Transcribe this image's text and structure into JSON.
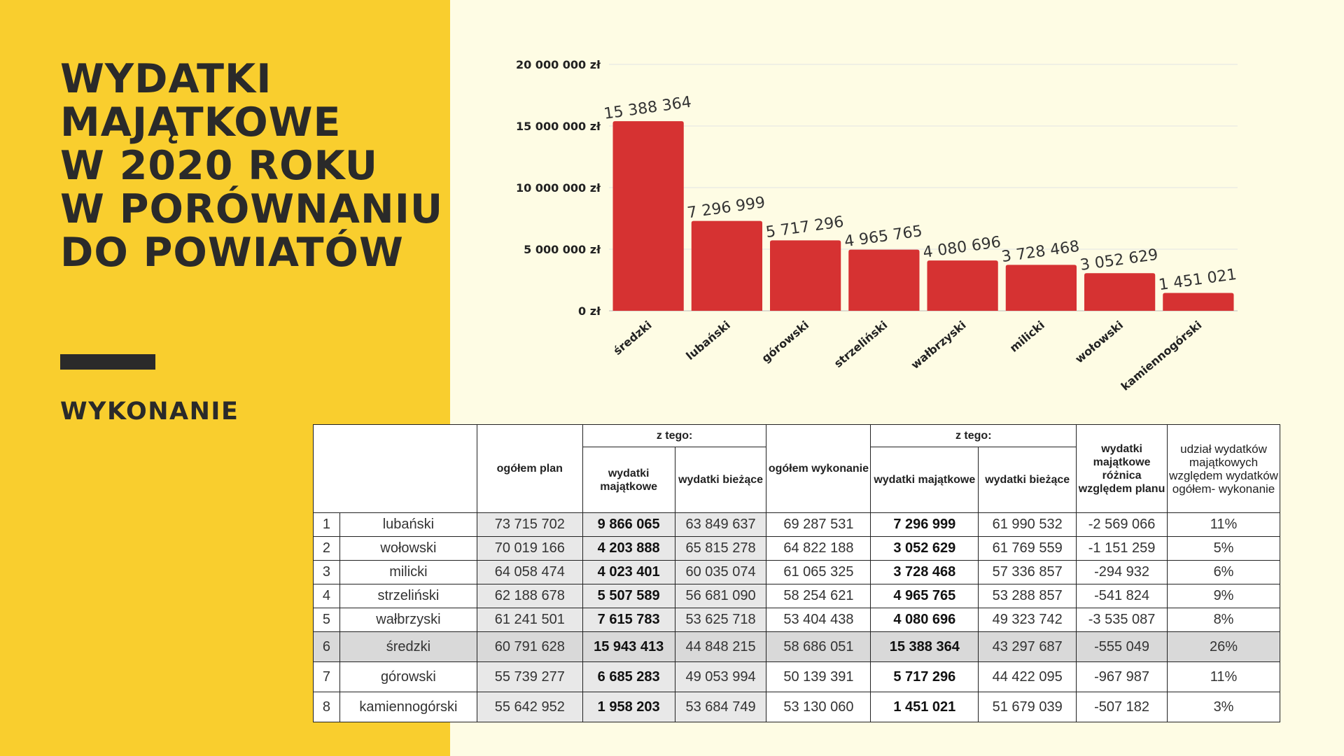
{
  "left_panel": {
    "title_lines": [
      "WYDATKI",
      "MAJĄTKOWE",
      "W 2020 ROKU",
      "W PORÓWNANIU",
      "DO POWIATÓW"
    ],
    "subtitle": "WYKONANIE",
    "background": "#F9CE2E"
  },
  "chart_data": {
    "type": "bar",
    "categories": [
      "średzki",
      "lubański",
      "górowski",
      "strzeliński",
      "wałbrzyski",
      "milicki",
      "wołowski",
      "kamiennogórski"
    ],
    "values": [
      15388364,
      7296999,
      5717296,
      4965765,
      4080696,
      3728468,
      3052629,
      1451021
    ],
    "value_labels": [
      "15 388 364",
      "7 296 999",
      "5 717 296",
      "4 965 765",
      "4 080 696",
      "3 728 468",
      "3 052 629",
      "1 451 021"
    ],
    "y_ticks": [
      0,
      5000000,
      10000000,
      15000000,
      20000000
    ],
    "y_tick_labels": [
      "0 zł",
      "5 000 000 zł",
      "10 000 000 zł",
      "15 000 000 zł",
      "20 000 000 zł"
    ],
    "ylim": [
      0,
      20000000
    ],
    "grid": true,
    "bar_color": "#D63232"
  },
  "table": {
    "headers": {
      "plan_total": "ogółem plan",
      "z_tego_1": "z tego:",
      "plan_majatkowe": "wydatki majątkowe",
      "plan_biezace": "wydatki bieżące",
      "exec_total": "ogółem wykonanie",
      "z_tego_2": "z tego:",
      "exec_majatkowe": "wydatki majątkowe",
      "exec_biezace": "wydatki bieżące",
      "diff": "wydatki majątkowe różnica względem planu",
      "share": "udział wydatków majątkowych względem wydatków ogółem- wykonanie"
    },
    "rows": [
      {
        "no": "1",
        "name": "lubański",
        "plan_total": "73 715 702",
        "plan_majatkowe": "9 866 065",
        "plan_biezace": "63 849 637",
        "exec_total": "69 287 531",
        "exec_majatkowe": "7 296 999",
        "exec_biezace": "61 990 532",
        "diff": "-2 569 066",
        "share": "11%"
      },
      {
        "no": "2",
        "name": "wołowski",
        "plan_total": "70 019 166",
        "plan_majatkowe": "4 203 888",
        "plan_biezace": "65 815 278",
        "exec_total": "64 822 188",
        "exec_majatkowe": "3 052 629",
        "exec_biezace": "61 769 559",
        "diff": "-1 151 259",
        "share": "5%"
      },
      {
        "no": "3",
        "name": "milicki",
        "plan_total": "64 058 474",
        "plan_majatkowe": "4 023 401",
        "plan_biezace": "60 035 074",
        "exec_total": "61 065 325",
        "exec_majatkowe": "3 728 468",
        "exec_biezace": "57 336 857",
        "diff": "-294 932",
        "share": "6%"
      },
      {
        "no": "4",
        "name": "strzeliński",
        "plan_total": "62 188 678",
        "plan_majatkowe": "5 507 589",
        "plan_biezace": "56 681 090",
        "exec_total": "58 254 621",
        "exec_majatkowe": "4 965 765",
        "exec_biezace": "53 288 857",
        "diff": "-541 824",
        "share": "9%"
      },
      {
        "no": "5",
        "name": "wałbrzyski",
        "plan_total": "61 241 501",
        "plan_majatkowe": "7 615 783",
        "plan_biezace": "53 625 718",
        "exec_total": "53 404 438",
        "exec_majatkowe": "4 080 696",
        "exec_biezace": "49 323 742",
        "diff": "-3 535 087",
        "share": "8%"
      },
      {
        "no": "6",
        "name": "średzki",
        "plan_total": "60 791 628",
        "plan_majatkowe": "15 943 413",
        "plan_biezace": "44 848 215",
        "exec_total": "58 686 051",
        "exec_majatkowe": "15 388 364",
        "exec_biezace": "43 297 687",
        "diff": "-555 049",
        "share": "26%"
      },
      {
        "no": "7",
        "name": "górowski",
        "plan_total": "55 739 277",
        "plan_majatkowe": "6 685 283",
        "plan_biezace": "49 053 994",
        "exec_total": "50 139 391",
        "exec_majatkowe": "5 717 296",
        "exec_biezace": "44 422 095",
        "diff": "-967 987",
        "share": "11%"
      },
      {
        "no": "8",
        "name": "kamiennogórski",
        "plan_total": "55 642 952",
        "plan_majatkowe": "1 958 203",
        "plan_biezace": "53 684 749",
        "exec_total": "53 130 060",
        "exec_majatkowe": "1 451 021",
        "exec_biezace": "51 679 039",
        "diff": "-507 182",
        "share": "3%"
      }
    ],
    "highlight_row": 5
  }
}
